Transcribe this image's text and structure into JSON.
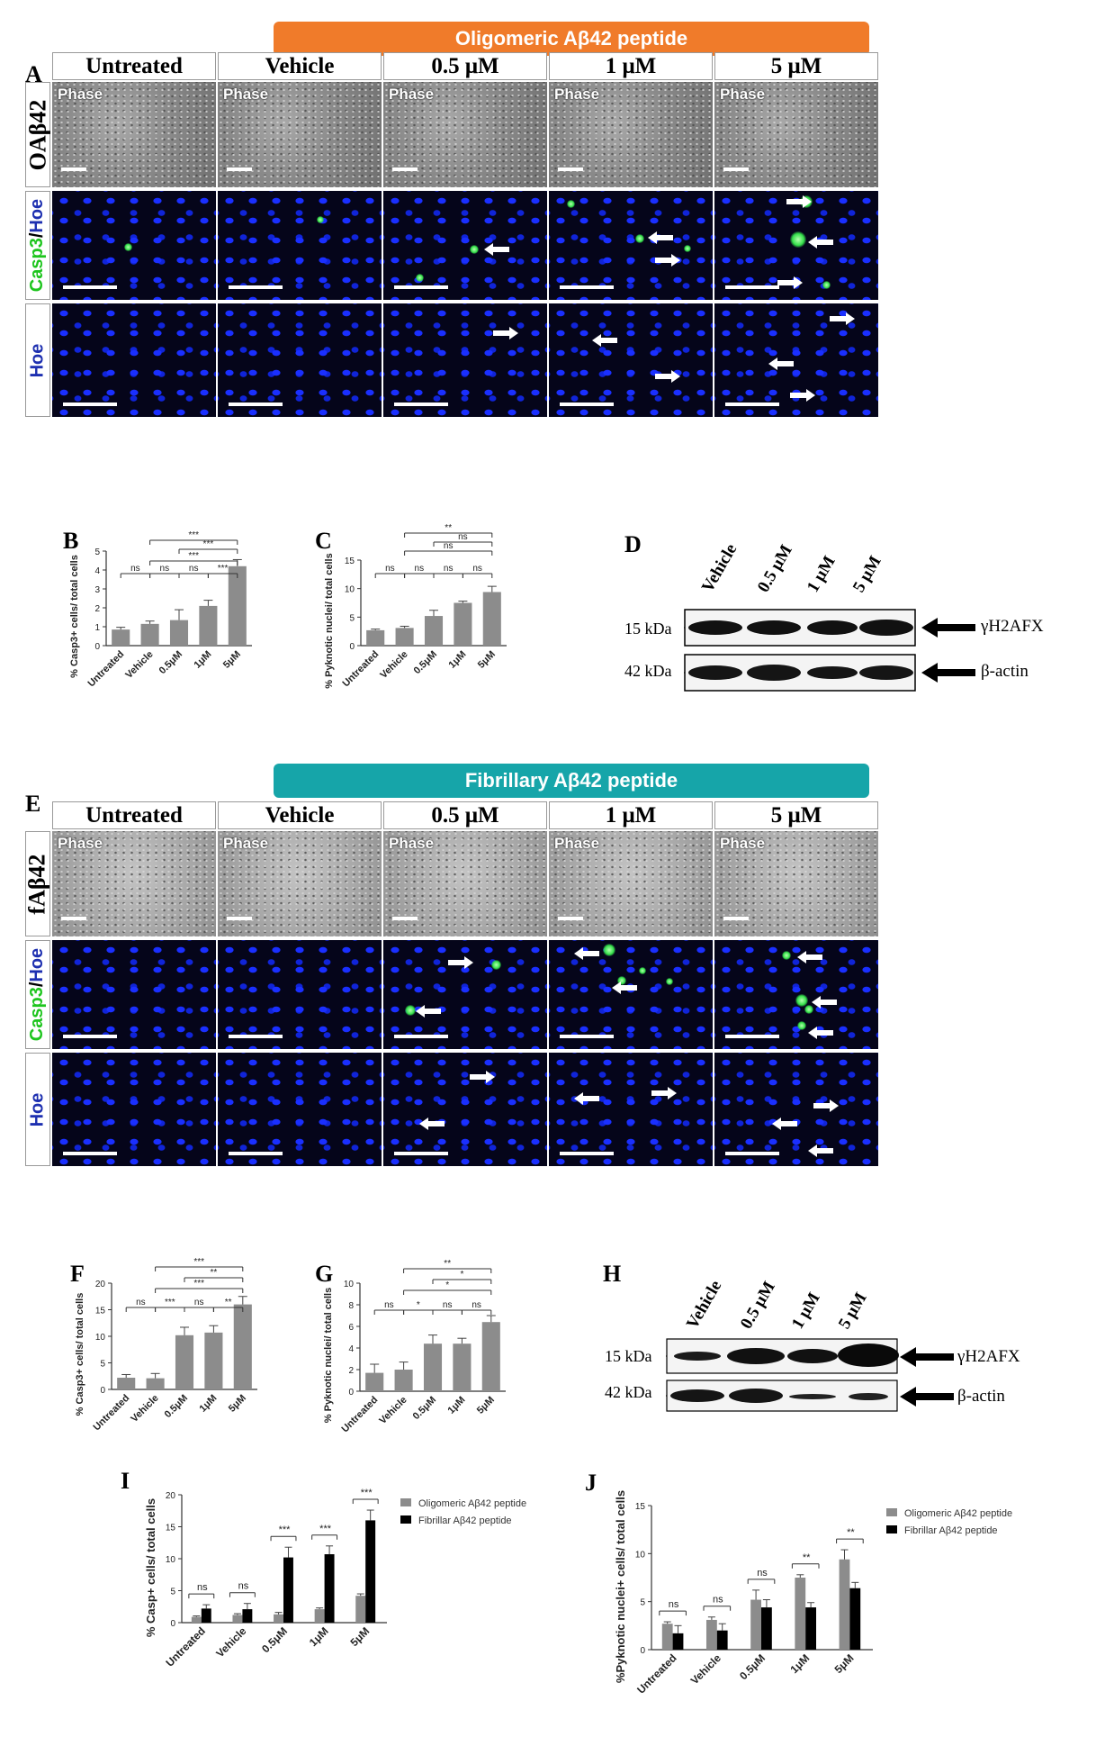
{
  "banners": {
    "top": "Oligomeric Aβ42 peptide",
    "mid": "Fibrillary Aβ42 peptide",
    "top_color": "#f07b2a",
    "mid_color": "#16a5a9"
  },
  "panel_letters": {
    "A": "A",
    "B": "B",
    "C": "C",
    "D": "D",
    "E": "E",
    "F": "F",
    "G": "G",
    "H": "H",
    "I": "I",
    "J": "J"
  },
  "columns": [
    "Untreated",
    "Vehicle",
    "0.5 μM",
    "1 μM",
    "5 μM"
  ],
  "rows_A": {
    "row1": "OAβ42",
    "row2_casp": "Casp3",
    "row2_sep": "/",
    "row2_hoe": "Hoe",
    "row3": "Hoe"
  },
  "rows_E": {
    "row1": "fAβ42",
    "row2_casp": "Casp3",
    "row2_sep": "/",
    "row2_hoe": "Hoe",
    "row3": "Hoe"
  },
  "phase_label": "Phase",
  "blot_D": {
    "lanes": [
      "Vehicle",
      "0.5 μM",
      "1 μM",
      "5 μM"
    ],
    "markers": [
      "15 kDa",
      "42 kDa"
    ],
    "targets": [
      "γH2AFX",
      "β-actin"
    ]
  },
  "blot_H": {
    "lanes": [
      "Vehicle",
      "0.5 μM",
      "1 μM",
      "5 μM"
    ],
    "markers": [
      "15 kDa",
      "42 kDa"
    ],
    "targets": [
      "γH2AFX",
      "β-actin"
    ]
  },
  "chart_data": [
    {
      "panel": "B",
      "type": "bar",
      "categories": [
        "Untreated",
        "Vehicle",
        "0.5μM",
        "1μM",
        "5μM"
      ],
      "values": [
        0.85,
        1.15,
        1.35,
        2.1,
        4.2
      ],
      "errors": [
        0.12,
        0.15,
        0.55,
        0.3,
        0.35
      ],
      "ylabel": "% Casp3+ cells/ total cells",
      "ylim": [
        0,
        5
      ],
      "yticks": [
        0,
        1,
        2,
        3,
        4,
        5
      ],
      "brackets": [
        {
          "from": 0,
          "to": 1,
          "label": "ns"
        },
        {
          "from": 1,
          "to": 2,
          "label": "ns"
        },
        {
          "from": 2,
          "to": 3,
          "label": "ns"
        },
        {
          "from": 1,
          "to": 4,
          "label": "***"
        },
        {
          "from": 3,
          "to": 4,
          "label": "***"
        },
        {
          "from": 2,
          "to": 4,
          "label": "***"
        },
        {
          "from": 1,
          "to": 4,
          "label": "***"
        }
      ]
    },
    {
      "panel": "C",
      "type": "bar",
      "categories": [
        "Untreated",
        "Vehicle",
        "0.5μM",
        "1μM",
        "5μM"
      ],
      "values": [
        2.7,
        3.1,
        5.2,
        7.5,
        9.4
      ],
      "errors": [
        0.2,
        0.3,
        1.0,
        0.3,
        1.0
      ],
      "ylabel": "% Pyknotic nuclei/ total cells",
      "ylim": [
        0,
        15
      ],
      "yticks": [
        0,
        5,
        10,
        15
      ],
      "brackets": [
        {
          "from": 0,
          "to": 1,
          "label": "ns"
        },
        {
          "from": 1,
          "to": 2,
          "label": "ns"
        },
        {
          "from": 2,
          "to": 3,
          "label": "ns"
        },
        {
          "from": 1,
          "to": 4,
          "label": "ns"
        },
        {
          "from": 2,
          "to": 4,
          "label": "ns"
        },
        {
          "from": 3,
          "to": 4,
          "label": "ns"
        },
        {
          "from": 1,
          "to": 4,
          "label": "**"
        }
      ]
    },
    {
      "panel": "F",
      "type": "bar",
      "categories": [
        "Untreated",
        "Vehicle",
        "0.5μM",
        "1μM",
        "5μM"
      ],
      "values": [
        2.2,
        2.1,
        10.2,
        10.7,
        16.0
      ],
      "errors": [
        0.6,
        0.9,
        1.5,
        1.3,
        1.5
      ],
      "ylabel": "% Casp3+ cells/ total cells",
      "ylim": [
        0,
        20
      ],
      "yticks": [
        0,
        5,
        10,
        15,
        20
      ],
      "brackets": [
        {
          "from": 0,
          "to": 1,
          "label": "ns"
        },
        {
          "from": 1,
          "to": 2,
          "label": "***"
        },
        {
          "from": 2,
          "to": 3,
          "label": "ns"
        },
        {
          "from": 3,
          "to": 4,
          "label": "**"
        },
        {
          "from": 1,
          "to": 4,
          "label": "***"
        },
        {
          "from": 2,
          "to": 4,
          "label": "**"
        },
        {
          "from": 1,
          "to": 4,
          "label": "***"
        }
      ]
    },
    {
      "panel": "G",
      "type": "bar",
      "categories": [
        "Untreated",
        "Vehicle",
        "0.5μM",
        "1μM",
        "5μM"
      ],
      "values": [
        1.7,
        2.0,
        4.4,
        4.4,
        6.4
      ],
      "errors": [
        0.8,
        0.7,
        0.8,
        0.5,
        0.6
      ],
      "ylabel": "% Pyknotic nuclei/ total cells",
      "ylim": [
        0,
        10
      ],
      "yticks": [
        0,
        2,
        4,
        6,
        8,
        10
      ],
      "brackets": [
        {
          "from": 0,
          "to": 1,
          "label": "ns"
        },
        {
          "from": 1,
          "to": 2,
          "label": "*"
        },
        {
          "from": 2,
          "to": 3,
          "label": "ns"
        },
        {
          "from": 1,
          "to": 4,
          "label": "*"
        },
        {
          "from": 2,
          "to": 4,
          "label": "*"
        },
        {
          "from": 3,
          "to": 4,
          "label": "ns"
        },
        {
          "from": 1,
          "to": 4,
          "label": "**"
        }
      ]
    },
    {
      "panel": "I",
      "type": "bar",
      "categories": [
        "Untreated",
        "Vehicle",
        "0.5μM",
        "1μM",
        "5μM"
      ],
      "series": [
        {
          "name": "Oligomeric Aβ42 peptide",
          "values": [
            0.9,
            1.2,
            1.3,
            2.1,
            4.2
          ],
          "errors": [
            0.15,
            0.2,
            0.3,
            0.2,
            0.3
          ],
          "color": "#8c8c8c"
        },
        {
          "name": "Fibrillar Aβ42 peptide",
          "values": [
            2.2,
            2.1,
            10.2,
            10.7,
            16.0
          ],
          "errors": [
            0.6,
            0.9,
            1.6,
            1.3,
            1.6
          ],
          "color": "#000000"
        }
      ],
      "sig": [
        "ns",
        "ns",
        "***",
        "***",
        "***"
      ],
      "ylabel": "% Casp+ cells/ total cells",
      "ylim": [
        0,
        20
      ],
      "yticks": [
        0,
        5,
        10,
        15,
        20
      ]
    },
    {
      "panel": "J",
      "type": "bar",
      "categories": [
        "Untreated",
        "Vehicle",
        "0.5μM",
        "1μM",
        "5μM"
      ],
      "series": [
        {
          "name": "Oligomeric Aβ42 peptide",
          "values": [
            2.7,
            3.1,
            5.2,
            7.5,
            9.4
          ],
          "errors": [
            0.2,
            0.3,
            1.0,
            0.3,
            1.0
          ],
          "color": "#8c8c8c"
        },
        {
          "name": "Fibrillar Aβ42 peptide",
          "values": [
            1.7,
            2.0,
            4.4,
            4.4,
            6.4
          ],
          "errors": [
            0.8,
            0.7,
            0.8,
            0.5,
            0.6
          ],
          "color": "#000000"
        }
      ],
      "sig": [
        "ns",
        "ns",
        "ns",
        "**",
        "**"
      ],
      "ylabel": "%Pyknotic nuclei+ cells/ total cells",
      "ylim": [
        0,
        15
      ],
      "yticks": [
        0,
        5,
        10,
        15
      ]
    }
  ]
}
